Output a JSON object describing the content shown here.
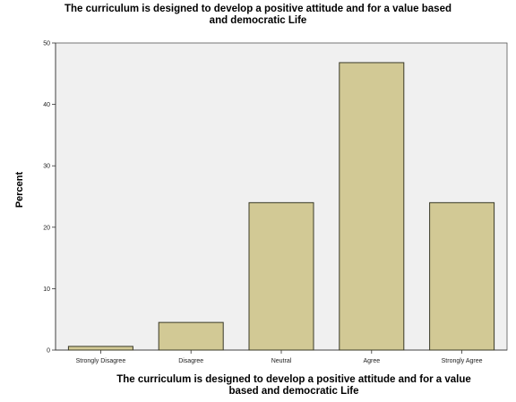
{
  "chart_data": {
    "type": "bar",
    "title_lines": [
      "The curriculum is designed to develop  a positive attitude and for a value based",
      "and democratic Life"
    ],
    "xlabel_lines": [
      "The curriculum is designed to develop  a positive attitude and for a value",
      "based and democratic Life"
    ],
    "ylabel": "Percent",
    "categories": [
      "Strongly Disagree",
      "Disagree",
      "Neutral",
      "Agree",
      "Strongly Agree"
    ],
    "values": [
      0.6,
      4.5,
      24.0,
      46.8,
      24.0
    ],
    "yticks": [
      0,
      10,
      20,
      30,
      40,
      50
    ],
    "ylim": [
      0,
      50
    ],
    "colors": {
      "bar_fill": "#d2c995",
      "bar_stroke": "#3a3a28",
      "plot_background": "#f0f0f0"
    }
  }
}
